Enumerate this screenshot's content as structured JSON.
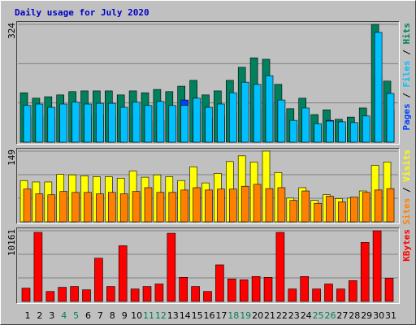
{
  "chart_data": [
    {
      "type": "bar",
      "title": "Daily usage for July 2020",
      "categories": [
        "1",
        "2",
        "3",
        "4",
        "5",
        "6",
        "7",
        "8",
        "9",
        "10",
        "11",
        "12",
        "13",
        "14",
        "15",
        "16",
        "17",
        "18",
        "19",
        "20",
        "21",
        "22",
        "23",
        "24",
        "25",
        "26",
        "27",
        "28",
        "29",
        "30",
        "31"
      ],
      "category_colors": [
        "#000000",
        "#000000",
        "#000000",
        "#00805c",
        "#00805c",
        "#000000",
        "#000000",
        "#000000",
        "#000000",
        "#000000",
        "#00805c",
        "#00805c",
        "#000000",
        "#000000",
        "#000000",
        "#000000",
        "#000000",
        "#00805c",
        "#00805c",
        "#000000",
        "#000000",
        "#000000",
        "#000000",
        "#000000",
        "#00805c",
        "#00805c",
        "#000000",
        "#000000",
        "#000000",
        "#000000",
        "#000000"
      ],
      "label_separator": "/",
      "series": [
        {
          "name": "Hits",
          "color": "#00805c",
          "values": [
            136,
            121,
            125,
            130,
            139,
            141,
            141,
            141,
            130,
            141,
            136,
            145,
            139,
            154,
            170,
            130,
            141,
            170,
            206,
            232,
            228,
            159,
            92,
            121,
            76,
            89,
            63,
            69,
            94,
            324,
            168
          ]
        },
        {
          "name": "Files",
          "color": "#00c0ff",
          "values": [
            101,
            105,
            96,
            105,
            110,
            105,
            107,
            107,
            96,
            110,
            101,
            112,
            101,
            101,
            121,
            96,
            105,
            136,
            165,
            159,
            183,
            116,
            60,
            94,
            51,
            58,
            56,
            54,
            72,
            302,
            134
          ]
        },
        {
          "name": "Pages",
          "color": "#0040ff",
          "values": [
            70,
            72,
            66,
            60,
            62,
            74,
            75,
            73,
            68,
            76,
            58,
            60,
            72,
            116,
            84,
            67,
            73,
            80,
            95,
            92,
            104,
            80,
            45,
            66,
            40,
            60,
            42,
            44,
            58,
            180,
            90
          ]
        }
      ],
      "ylim": [
        0,
        324
      ],
      "yticks": [
        324
      ],
      "grid": true
    },
    {
      "type": "bar",
      "label_separator": "/",
      "series": [
        {
          "name": "Visits",
          "color": "#ffff00",
          "values": [
            87,
            84,
            84,
            100,
            99,
            97,
            95,
            95,
            92,
            107,
            94,
            99,
            95,
            87,
            116,
            82,
            102,
            127,
            139,
            126,
            149,
            104,
            50,
            72,
            45,
            57,
            49,
            50,
            65,
            119,
            126
          ]
        },
        {
          "name": "Sites",
          "color": "#ff8000",
          "values": [
            69,
            59,
            57,
            64,
            62,
            62,
            59,
            62,
            59,
            64,
            72,
            62,
            62,
            67,
            72,
            67,
            69,
            69,
            75,
            79,
            70,
            72,
            45,
            65,
            39,
            54,
            42,
            52,
            62,
            67,
            70
          ]
        }
      ],
      "ylim": [
        0,
        149
      ],
      "yticks": [
        149
      ],
      "grid": true
    },
    {
      "type": "bar",
      "series": [
        {
          "name": "KBytes",
          "color": "#ff0000",
          "values": [
            1913,
            9922,
            1435,
            2032,
            2152,
            1674,
            6216,
            2152,
            8009,
            1793,
            2152,
            2510,
            9802,
            3467,
            2152,
            1435,
            5260,
            3228,
            3108,
            3586,
            3467,
            9922,
            1793,
            3586,
            1793,
            2510,
            1793,
            2989,
            8486,
            10161,
            3347
          ]
        }
      ],
      "ylim": [
        0,
        10161
      ],
      "yticks": [
        10161
      ],
      "grid": true
    }
  ]
}
